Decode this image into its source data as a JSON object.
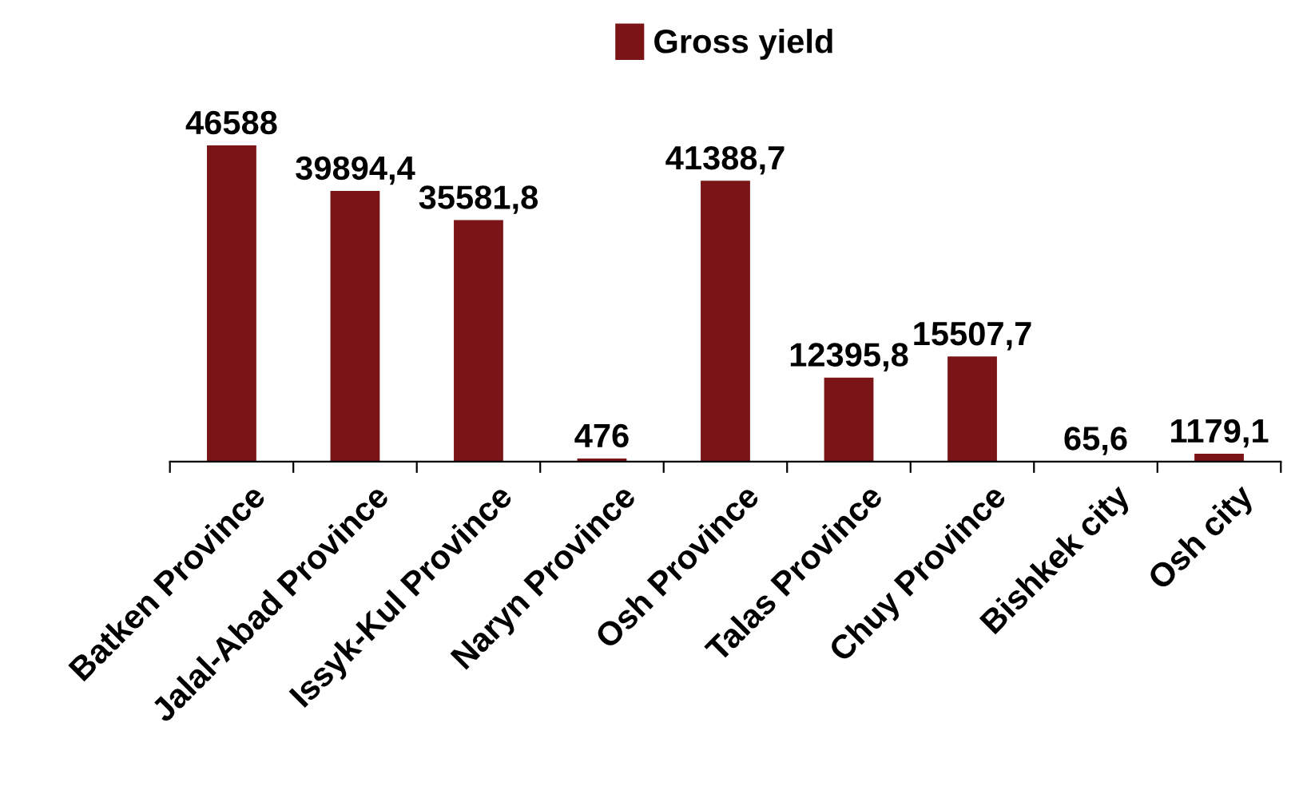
{
  "chart_data": {
    "type": "bar",
    "categories": [
      "Batken Province",
      "Jalal-Abad Province",
      "Issyk-Kul Province",
      "Naryn Province",
      "Osh Province",
      "Talas Province",
      "Chuy Province",
      "Bishkek city",
      "Osh city"
    ],
    "series": [
      {
        "name": "Gross yield",
        "color": "#7b1416",
        "values": [
          46588,
          39894.4,
          35581.8,
          476,
          41388.7,
          12395.8,
          15507.7,
          65.6,
          1179.1
        ],
        "value_labels": [
          "46588",
          "39894,4",
          "35581,8",
          "476",
          "41388,7",
          "12395,8",
          "15507,7",
          "65,6",
          "1179,1"
        ]
      }
    ],
    "legend": "top",
    "grid": false
  }
}
